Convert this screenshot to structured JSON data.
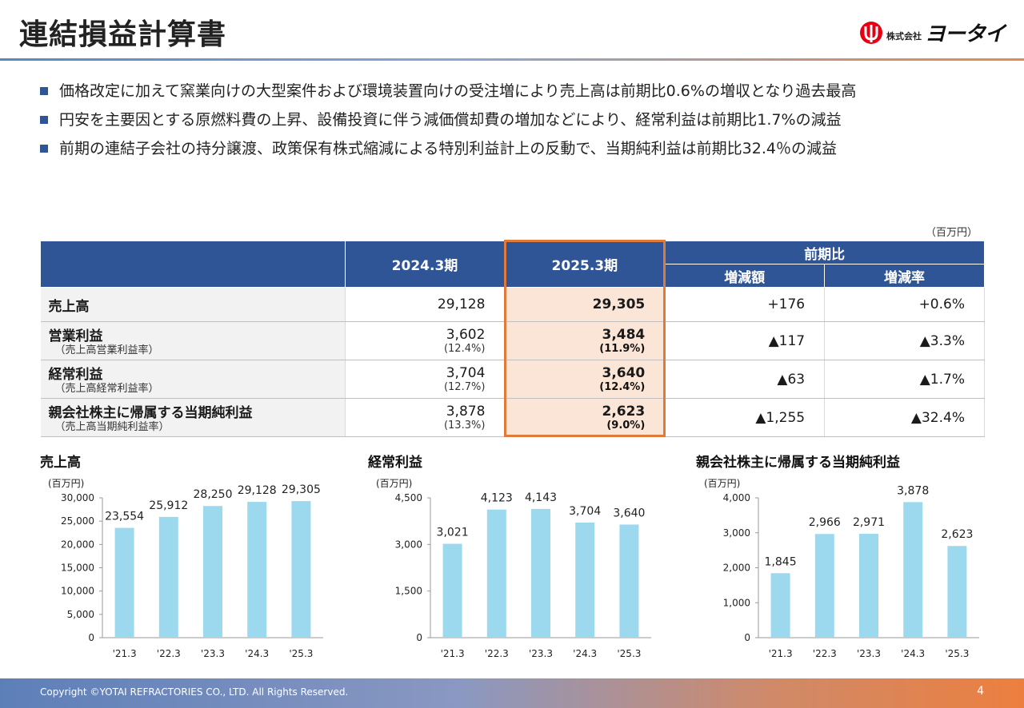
{
  "header": {
    "title": "連結損益計算書",
    "logo_prefix": "株式会社",
    "logo_name": "ヨータイ"
  },
  "bullets": [
    "価格改定に加えて窯業向けの大型案件および環境装置向けの受注増により売上高は前期比0.6%の増収となり過去最高",
    "円安を主要因とする原燃料費の上昇、設備投資に伴う減価償却費の増加などにより、経常利益は前期比1.7%の減益",
    "前期の連結子会社の持分譲渡、政策保有株式縮減による特別利益計上の反動で、当期純利益は前期比32.4％の減益"
  ],
  "table": {
    "unit": "（百万円）",
    "headers": {
      "prev": "2024.3期",
      "curr": "2025.3期",
      "compare": "前期比",
      "diff": "増減額",
      "rate": "増減率"
    },
    "rows": [
      {
        "label": "売上高",
        "sublabel": "",
        "prev": "29,128",
        "prev_sub": "",
        "curr": "29,305",
        "curr_sub": "",
        "diff": "+176",
        "rate": "+0.6%"
      },
      {
        "label": "営業利益",
        "sublabel": "（売上高営業利益率）",
        "prev": "3,602",
        "prev_sub": "(12.4%)",
        "curr": "3,484",
        "curr_sub": "(11.9%)",
        "diff": "▲117",
        "rate": "▲3.3%"
      },
      {
        "label": "経常利益",
        "sublabel": "（売上高経常利益率）",
        "prev": "3,704",
        "prev_sub": "(12.7%)",
        "curr": "3,640",
        "curr_sub": "(12.4%)",
        "diff": "▲63",
        "rate": "▲1.7%"
      },
      {
        "label": "親会社株主に帰属する当期純利益",
        "sublabel": "（売上高当期純利益率）",
        "prev": "3,878",
        "prev_sub": "(13.3%)",
        "curr": "2,623",
        "curr_sub": "(9.0%)",
        "diff": "▲1,255",
        "rate": "▲32.4%"
      }
    ]
  },
  "chart_data": [
    {
      "type": "bar",
      "title": "売上高",
      "unit_label": "(百万円)",
      "categories": [
        "'21.3",
        "'22.3",
        "'23.3",
        "'24.3",
        "'25.3"
      ],
      "values": [
        23554,
        25912,
        28250,
        29128,
        29305
      ],
      "value_labels": [
        "23,554",
        "25,912",
        "28,250",
        "29,128",
        "29,305"
      ],
      "ylim": [
        0,
        30000
      ],
      "yticks": [
        0,
        5000,
        10000,
        15000,
        20000,
        25000,
        30000
      ],
      "ytick_labels": [
        "0",
        "5,000",
        "10,000",
        "15,000",
        "20,000",
        "25,000",
        "30,000"
      ],
      "bar_color": "#9dd9ee"
    },
    {
      "type": "bar",
      "title": "経常利益",
      "unit_label": "(百万円)",
      "categories": [
        "'21.3",
        "'22.3",
        "'23.3",
        "'24.3",
        "'25.3"
      ],
      "values": [
        3021,
        4123,
        4143,
        3704,
        3640
      ],
      "value_labels": [
        "3,021",
        "4,123",
        "4,143",
        "3,704",
        "3,640"
      ],
      "ylim": [
        0,
        4500
      ],
      "yticks": [
        0,
        1500,
        3000,
        4500
      ],
      "ytick_labels": [
        "0",
        "1,500",
        "3,000",
        "4,500"
      ],
      "bar_color": "#9dd9ee"
    },
    {
      "type": "bar",
      "title": "親会社株主に帰属する当期純利益",
      "unit_label": "(百万円)",
      "categories": [
        "'21.3",
        "'22.3",
        "'23.3",
        "'24.3",
        "'25.3"
      ],
      "values": [
        1845,
        2966,
        2971,
        3878,
        2623
      ],
      "value_labels": [
        "1,845",
        "2,966",
        "2,971",
        "3,878",
        "2,623"
      ],
      "ylim": [
        0,
        4000
      ],
      "yticks": [
        0,
        1000,
        2000,
        3000,
        4000
      ],
      "ytick_labels": [
        "0",
        "1,000",
        "2,000",
        "3,000",
        "4,000"
      ],
      "bar_color": "#9dd9ee"
    }
  ],
  "footer": {
    "copyright": "Copyright ©YOTAI REFRACTORIES CO., LTD. All Rights Reserved.",
    "page": "4"
  },
  "colors": {
    "header_blue": "#2f5597",
    "highlight_fill": "#fbe5d6",
    "highlight_border": "#e07a3a"
  },
  "icons": {
    "logo": "yotai-logo-icon",
    "bullet": "square-bullet-icon"
  }
}
